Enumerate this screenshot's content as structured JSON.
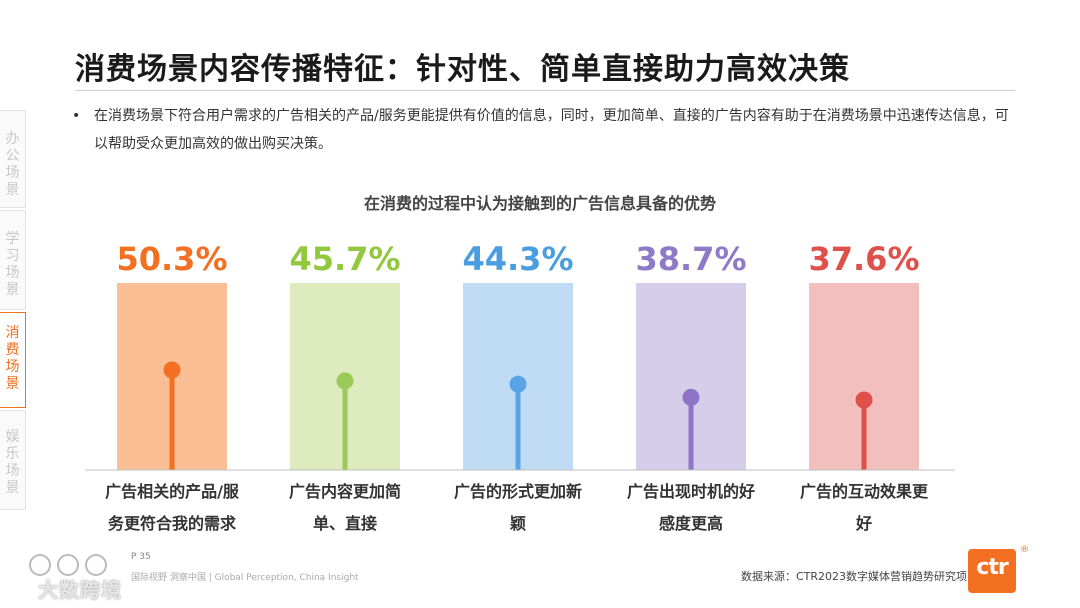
{
  "title": "消费场景内容传播特征：针对性、简单直接助力高效决策",
  "bullet": {
    "marker": "•",
    "text": "在消费场景下符合用户需求的广告相关的产品/服务更能提供有价值的信息，同时，更加简单、直接的广告内容有助于在消费场景中迅速传达信息，可以帮助受众更加高效的做出购买决策。"
  },
  "side_tabs": [
    {
      "label": "办公场景",
      "active": false
    },
    {
      "label": "学习场景",
      "active": false
    },
    {
      "label": "消费场景",
      "active": true
    },
    {
      "label": "娱乐场景",
      "active": false
    }
  ],
  "chart_data": {
    "type": "bar",
    "title": "在消费的过程中认为接触到的广告信息具备的优势",
    "categories": [
      [
        "广告相关的产品/服",
        "务更符合我的需求"
      ],
      [
        "广告内容更加简",
        "单、直接"
      ],
      [
        "广告的形式更加新",
        "颖"
      ],
      [
        "广告出现时机的好",
        "感度更高"
      ],
      [
        "广告的互动效果更",
        "好"
      ]
    ],
    "values": [
      50.3,
      45.7,
      44.3,
      38.7,
      37.6
    ],
    "value_labels": [
      "50.3%",
      "45.7%",
      "44.3%",
      "38.7%",
      "37.6%"
    ],
    "label_colors": [
      "#f36f21",
      "#92c83e",
      "#4a9de0",
      "#8e7ac8",
      "#e0504a"
    ],
    "bar_colors": [
      "#fbbf96",
      "#ddebbf",
      "#c0dcf4",
      "#d6cdea",
      "#f2bfbd"
    ],
    "stem_colors": [
      "#f36f21",
      "#9bc95a",
      "#5aa3e6",
      "#8e73c6",
      "#e0504a"
    ],
    "ylim": [
      0,
      100
    ],
    "legend": "none",
    "grid": false
  },
  "footer": {
    "source": "数据来源：CTR2023数字媒体营销趋势研究项目",
    "page": "P 35",
    "tagline": "国际视野  洞察中国 | Global Perception, China Insight",
    "logo_text": "ctr",
    "logo_mark": "®"
  },
  "watermark": {
    "text": "大数跨境"
  }
}
